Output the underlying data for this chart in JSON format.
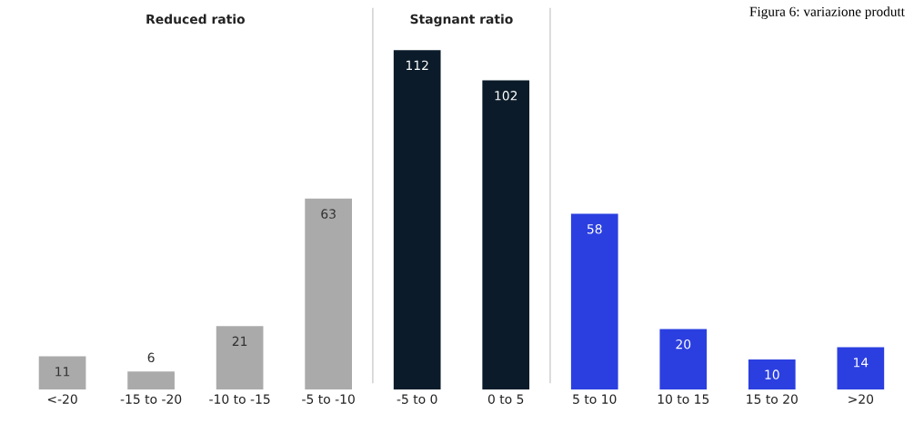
{
  "chart_data": {
    "type": "bar",
    "title": "Figura 6: variazione produtt",
    "categories": [
      "<-20",
      "-15 to -20",
      "-10 to -15",
      "-5 to -10",
      "-5 to 0",
      "0 to 5",
      "5 to 10",
      "10 to 15",
      "15 to 20",
      ">20"
    ],
    "values": [
      11,
      6,
      21,
      63,
      112,
      102,
      58,
      20,
      10,
      14
    ],
    "colors": [
      "#aaaaaa",
      "#aaaaaa",
      "#aaaaaa",
      "#aaaaaa",
      "#0b1b29",
      "#0b1b29",
      "#2b3fe0",
      "#2b3fe0",
      "#2b3fe0",
      "#2b3fe0"
    ],
    "data_labels": true,
    "annotations": [
      "Reduced ratio",
      "Stagnant ratio"
    ],
    "tick_labels": "x",
    "grid": false,
    "legend": false
  }
}
